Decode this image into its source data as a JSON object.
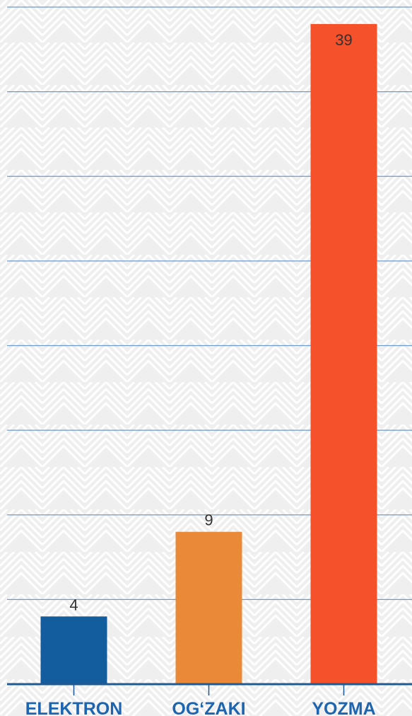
{
  "chart_data": {
    "type": "bar",
    "categories": [
      "ELEKTRON",
      "OG‘ZAKI",
      "YOZMA"
    ],
    "values": [
      4,
      9,
      39
    ],
    "value_labels": [
      "4",
      "9",
      "39"
    ],
    "ylim": [
      0,
      40
    ],
    "y_gridline_step": 5,
    "grid": true,
    "legend": "none",
    "colors": {
      "bars": [
        "#135d9e",
        "#ea8a38",
        "#f5512b"
      ],
      "gridline": "#6b9ad1",
      "axis": "#1f5a96",
      "category_text": "#1d65b0",
      "value_text": "#333333",
      "background": "#f2f2f2",
      "pattern": "#ffffff"
    }
  }
}
